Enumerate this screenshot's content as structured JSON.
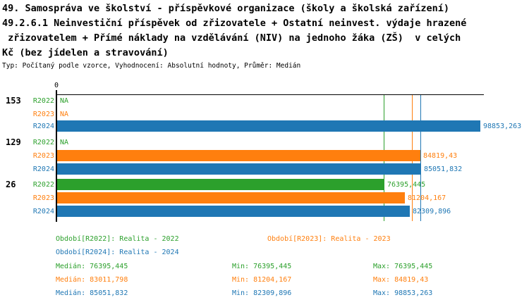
{
  "title_lines": [
    "49. Samospráva ve školství - příspěvkové organizace (školy a školská zařízení)",
    "49.2.6.1 Neinvestiční příspěvek od zřizovatele + Ostatní neinvest. výdaje hrazené",
    " zřizovatelem + Přímé náklady na vzdělávání (NIV) na jednoho žáka (ZŠ)  v celých",
    "Kč (bez jídelen a stravování)"
  ],
  "subtitle": "Typ: Počítaný podle vzorce, Vyhodnocení: Absolutní hodnoty, Průměr: Medián",
  "colors": {
    "R2022": "#2CA02C",
    "R2023": "#FF7F0E",
    "R2024": "#1F77B4",
    "axis": "#000000",
    "background": "#FFFFFF"
  },
  "chart_data": {
    "type": "bar",
    "orientation": "horizontal",
    "axis_zero_label": "0",
    "value_axis_min": 0,
    "value_axis_max_ref": 98853.263,
    "na_text": "NA",
    "series_names": [
      "R2022",
      "R2023",
      "R2024"
    ],
    "groups": [
      {
        "label": "153",
        "bars": [
          {
            "series": "R2022",
            "value": null,
            "display": "NA"
          },
          {
            "series": "R2023",
            "value": null,
            "display": "NA"
          },
          {
            "series": "R2024",
            "value": 98853.263,
            "display": "98853,263"
          }
        ]
      },
      {
        "label": "129",
        "bars": [
          {
            "series": "R2022",
            "value": null,
            "display": "NA"
          },
          {
            "series": "R2023",
            "value": 84819.43,
            "display": "84819,43"
          },
          {
            "series": "R2024",
            "value": 85051.832,
            "display": "85051,832"
          }
        ]
      },
      {
        "label": "26",
        "bars": [
          {
            "series": "R2022",
            "value": 76395.445,
            "display": "76395,445"
          },
          {
            "series": "R2023",
            "value": 81204.167,
            "display": "81204,167"
          },
          {
            "series": "R2024",
            "value": 82309.896,
            "display": "82309,896"
          }
        ]
      }
    ],
    "median_lines": [
      {
        "series": "R2022",
        "value": 76395.445
      },
      {
        "series": "R2023",
        "value": 83011.798
      },
      {
        "series": "R2024",
        "value": 85051.832
      }
    ]
  },
  "legend": {
    "periods": [
      {
        "series": "R2022",
        "text": "Období[R2022]: Realita - 2022"
      },
      {
        "series": "R2023",
        "text": "Období[R2023]: Realita - 2023"
      },
      {
        "series": "R2024",
        "text": "Období[R2024]: Realita - 2024"
      }
    ],
    "stats": [
      {
        "series": "R2022",
        "median": "Medián: 76395,445",
        "min": "Min: 76395,445",
        "max": "Max: 76395,445"
      },
      {
        "series": "R2023",
        "median": "Medián: 83011,798",
        "min": "Min: 81204,167",
        "max": "Max: 84819,43"
      },
      {
        "series": "R2024",
        "median": "Medián: 85051,832",
        "min": "Min: 82309,896",
        "max": "Max: 98853,263"
      }
    ]
  }
}
